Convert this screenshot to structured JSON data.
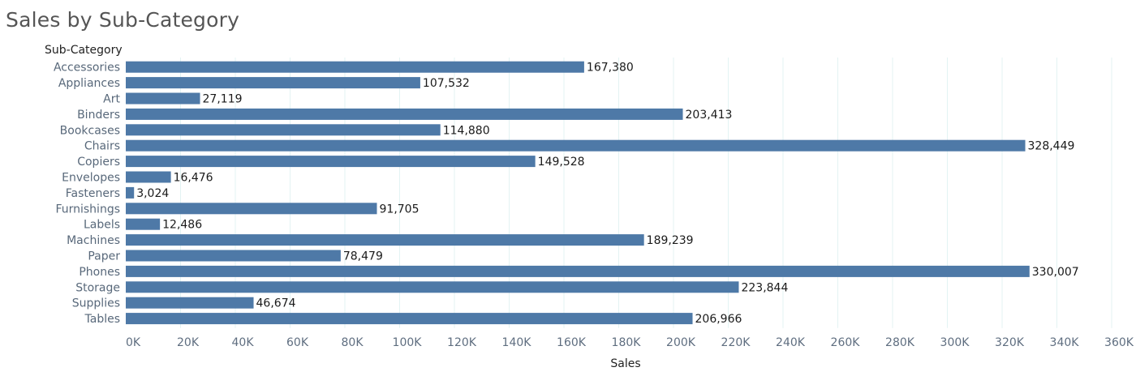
{
  "chart_data": {
    "type": "bar",
    "orientation": "horizontal",
    "title": "Sales by Sub-Category",
    "row_header": "Sub-Category",
    "xlabel": "Sales",
    "ylabel": "",
    "categories": [
      "Accessories",
      "Appliances",
      "Art",
      "Binders",
      "Bookcases",
      "Chairs",
      "Copiers",
      "Envelopes",
      "Fasteners",
      "Furnishings",
      "Labels",
      "Machines",
      "Paper",
      "Phones",
      "Storage",
      "Supplies",
      "Tables"
    ],
    "values": [
      167380,
      107532,
      27119,
      203413,
      114880,
      328449,
      149528,
      16476,
      3024,
      91705,
      12486,
      189239,
      78479,
      330007,
      223844,
      46674,
      206966
    ],
    "value_labels": [
      "167,380",
      "107,532",
      "27,119",
      "203,413",
      "114,880",
      "328,449",
      "149,528",
      "16,476",
      "3,024",
      "91,705",
      "12,486",
      "189,239",
      "78,479",
      "330,007",
      "223,844",
      "46,674",
      "206,966"
    ],
    "xlim": [
      0,
      360000
    ],
    "xticks": [
      0,
      20000,
      40000,
      60000,
      80000,
      100000,
      120000,
      140000,
      160000,
      180000,
      200000,
      220000,
      240000,
      260000,
      280000,
      300000,
      320000,
      340000,
      360000
    ],
    "xtick_labels": [
      "0K",
      "20K",
      "40K",
      "60K",
      "80K",
      "100K",
      "120K",
      "140K",
      "160K",
      "180K",
      "200K",
      "220K",
      "240K",
      "260K",
      "280K",
      "300K",
      "320K",
      "340K",
      "360K"
    ],
    "grid": "vertical",
    "legend": "none",
    "colors": {
      "bar": "#4e79a7",
      "grid": "#e3f3f3"
    }
  }
}
